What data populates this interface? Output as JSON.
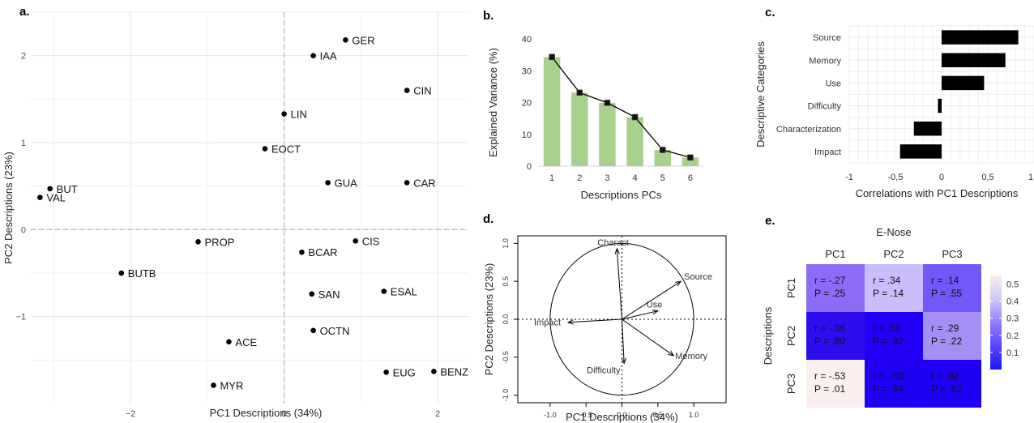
{
  "panels": {
    "a": "a.",
    "b": "b.",
    "c": "c.",
    "d": "d.",
    "e": "e."
  },
  "chart_data": [
    {
      "panel": "a",
      "type": "scatter",
      "xlabel": "PC1 Descriptions (34%)",
      "ylabel": "PC2 Descriptions (23%)",
      "xlim": [
        -3.3,
        2.4
      ],
      "ylim": [
        -2.0,
        2.5
      ],
      "xticks": [
        -2,
        0,
        2
      ],
      "yticks": [
        -1,
        0,
        1,
        2
      ],
      "grid": true,
      "points": [
        {
          "label": "GER",
          "x": 0.8,
          "y": 2.18
        },
        {
          "label": "IAA",
          "x": 0.38,
          "y": 2.0
        },
        {
          "label": "CIN",
          "x": 1.6,
          "y": 1.6
        },
        {
          "label": "LIN",
          "x": 0.0,
          "y": 1.33
        },
        {
          "label": "EOCT",
          "x": -0.25,
          "y": 0.93
        },
        {
          "label": "BUT",
          "x": -3.05,
          "y": 0.47
        },
        {
          "label": "VAL",
          "x": -3.18,
          "y": 0.37
        },
        {
          "label": "GUA",
          "x": 0.57,
          "y": 0.54
        },
        {
          "label": "CAR",
          "x": 1.6,
          "y": 0.54
        },
        {
          "label": "PROP",
          "x": -1.12,
          "y": -0.14
        },
        {
          "label": "CIS",
          "x": 0.93,
          "y": -0.13
        },
        {
          "label": "BCAR",
          "x": 0.23,
          "y": -0.26
        },
        {
          "label": "BUTB",
          "x": -2.12,
          "y": -0.5
        },
        {
          "label": "ESAL",
          "x": 1.3,
          "y": -0.71
        },
        {
          "label": "SAN",
          "x": 0.36,
          "y": -0.74
        },
        {
          "label": "OCTN",
          "x": 0.38,
          "y": -1.16
        },
        {
          "label": "ACE",
          "x": -0.72,
          "y": -1.29
        },
        {
          "label": "EUG",
          "x": 1.33,
          "y": -1.64
        },
        {
          "label": "BENZ",
          "x": 1.95,
          "y": -1.63
        },
        {
          "label": "MYR",
          "x": -0.92,
          "y": -1.79
        }
      ]
    },
    {
      "panel": "b",
      "type": "bar",
      "xlabel": "Descriptions PCs",
      "ylabel": "Explained Variance (%)",
      "categories": [
        "1",
        "2",
        "3",
        "4",
        "5",
        "6"
      ],
      "values": [
        34.3,
        23.1,
        19.9,
        15.4,
        5.1,
        2.7
      ],
      "ylim": [
        0,
        40
      ],
      "yticks": [
        0,
        10,
        20,
        30,
        40
      ],
      "bar_color": "#a9d18e",
      "line_color": "#000000"
    },
    {
      "panel": "c",
      "type": "bar",
      "orientation": "horizontal",
      "xlabel": "Correlations with PC1 Descriptions",
      "ylabel": "Descriptive Categories",
      "categories": [
        "Source",
        "Memory",
        "Use",
        "Difficulty",
        "Characterization",
        "Impact"
      ],
      "values": [
        0.83,
        0.69,
        0.46,
        -0.04,
        -0.3,
        -0.45
      ],
      "xlim": [
        -1,
        1
      ],
      "xticks": [
        -1,
        -0.5,
        0,
        0.5,
        1
      ],
      "xtick_labels": [
        "-1",
        "-0,5",
        "0",
        "0,5",
        "1"
      ],
      "bar_color": "#000000"
    },
    {
      "panel": "d",
      "type": "scatter",
      "subtype": "correlation-circle",
      "xlabel": "PC1 Descriptions (34%)",
      "ylabel": "PC2 Descriptions (23%)",
      "xlim": [
        -1.45,
        1.45
      ],
      "ylim": [
        -1.1,
        1.1
      ],
      "xticks": [
        -1.0,
        -0.5,
        0.0,
        0.5,
        1.0
      ],
      "xtick_labels": [
        "-1.0",
        "-0.5",
        "0.0",
        "0.5",
        "1.0"
      ],
      "yticks": [
        -1.0,
        -0.5,
        0.0,
        0.5,
        1.0
      ],
      "ytick_labels": [
        "-1.0",
        "-0.5",
        "0.0",
        "0.5",
        "1.0"
      ],
      "vectors": [
        {
          "label": "Charact",
          "x": -0.07,
          "y": 0.93
        },
        {
          "label": "Source",
          "x": 0.82,
          "y": 0.5
        },
        {
          "label": "Use",
          "x": 0.5,
          "y": 0.11
        },
        {
          "label": "Impact",
          "x": -0.75,
          "y": -0.04
        },
        {
          "label": "Memory",
          "x": 0.72,
          "y": -0.48
        },
        {
          "label": "Difficulty",
          "x": 0.03,
          "y": -0.58
        }
      ]
    },
    {
      "panel": "e",
      "type": "heatmap",
      "title": "E-Nose",
      "ylabel": "Descriptions",
      "columns": [
        "PC1",
        "PC2",
        "PC3"
      ],
      "rows": [
        "PC1",
        "PC2",
        "PC3"
      ],
      "r": [
        [
          "r = -.27",
          "r = .34",
          "r = .14"
        ],
        [
          "r = -.06",
          "r = .02",
          "r = .29"
        ],
        [
          "r = -.53",
          "r = -.02",
          "r = .02"
        ]
      ],
      "p": [
        [
          "P = .25",
          "P = .14",
          "P = .55"
        ],
        [
          "P = .80",
          "P = .92",
          "P = .22"
        ],
        [
          "P = .01",
          "P = .94",
          "P = .92"
        ]
      ],
      "values": [
        [
          0.27,
          0.34,
          0.14
        ],
        [
          0.06,
          0.02,
          0.29
        ],
        [
          0.53,
          0.02,
          0.02
        ]
      ],
      "colors": [
        [
          "#8c6cf7",
          "#cbbdfb",
          "#7257f9"
        ],
        [
          "#2d0df0",
          "#2200f5",
          "#a58ff4"
        ],
        [
          "#fbf0ef",
          "#2000f5",
          "#2000f5"
        ]
      ],
      "colorbar": {
        "ticks": [
          0.1,
          0.2,
          0.3,
          0.4,
          0.5
        ],
        "tick_labels": [
          "0.1",
          "0.2",
          "0.3",
          "0.4",
          "0.5"
        ],
        "min": 0.0,
        "max": 0.55
      }
    }
  ]
}
